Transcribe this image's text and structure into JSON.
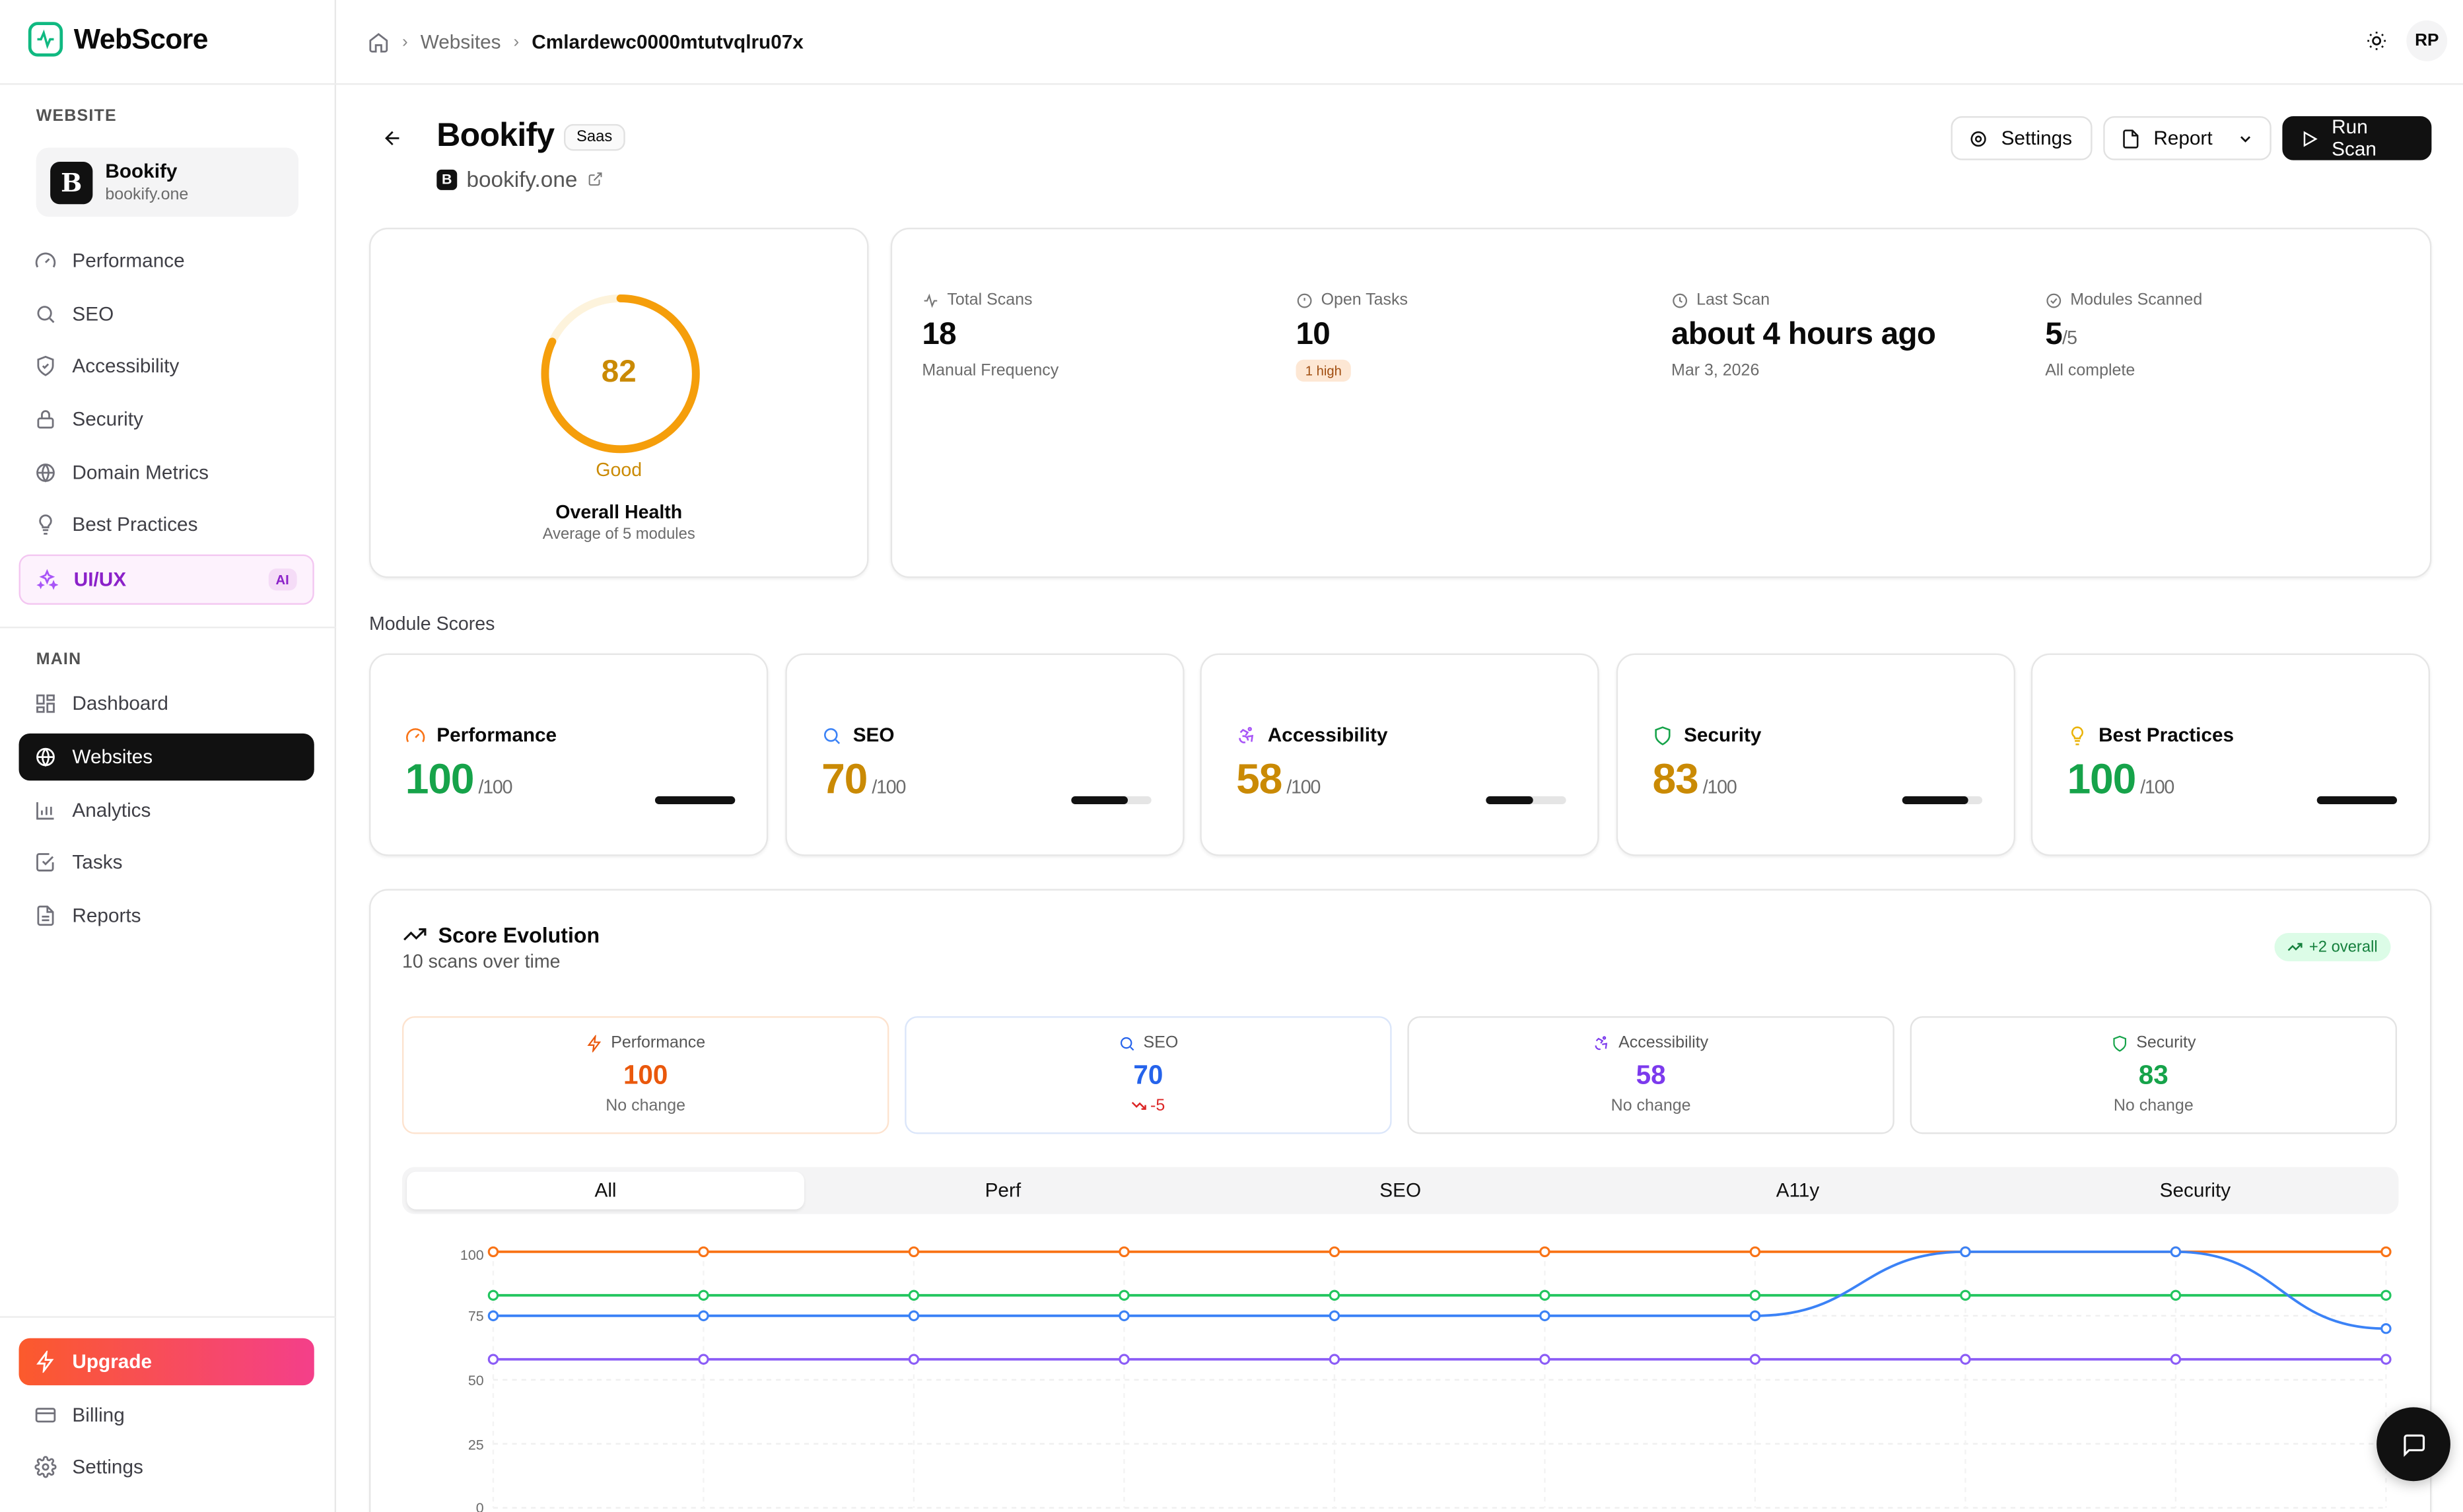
{
  "app": {
    "name": "WebScore"
  },
  "sidebar": {
    "website_label": "WEBSITE",
    "site": {
      "name": "Bookify",
      "url": "bookify.one"
    },
    "website_items": [
      {
        "label": "Performance",
        "icon": "gauge-icon"
      },
      {
        "label": "SEO",
        "icon": "search-icon"
      },
      {
        "label": "Accessibility",
        "icon": "shield-icon"
      },
      {
        "label": "Security",
        "icon": "lock-icon"
      },
      {
        "label": "Domain Metrics",
        "icon": "globe-icon"
      },
      {
        "label": "Best Practices",
        "icon": "lightbulb-icon"
      }
    ],
    "uiux": {
      "label": "UI/UX",
      "badge": "AI",
      "icon": "sparkles-icon"
    },
    "main_label": "MAIN",
    "main_items": [
      {
        "label": "Dashboard",
        "icon": "dashboard-icon"
      },
      {
        "label": "Websites",
        "icon": "globe-icon",
        "active": true
      },
      {
        "label": "Analytics",
        "icon": "bar-chart-icon"
      },
      {
        "label": "Tasks",
        "icon": "checkbox-icon"
      },
      {
        "label": "Reports",
        "icon": "file-icon"
      }
    ],
    "bottom_items": [
      {
        "label": "Upgrade",
        "icon": "bolt-icon"
      },
      {
        "label": "Billing",
        "icon": "card-icon"
      },
      {
        "label": "Settings",
        "icon": "gear-icon"
      }
    ]
  },
  "topbar": {
    "breadcrumb": [
      "Websites",
      "Cmlardewc0000mtutvqlru07x"
    ],
    "avatar": "RP"
  },
  "header": {
    "title": "Bookify",
    "tag": "Saas",
    "domain": "bookify.one",
    "settings_label": "Settings",
    "report_label": "Report",
    "run_label": "Run Scan"
  },
  "health": {
    "score": 82,
    "score_text": "82",
    "rating": "Good",
    "label": "Overall Health",
    "sub": "Average of 5 modules"
  },
  "stats": [
    {
      "label": "Total Scans",
      "value": "18",
      "sub": "Manual Frequency",
      "icon": "activity-icon"
    },
    {
      "label": "Open Tasks",
      "value": "10",
      "badge": "1 high",
      "icon": "alert-circle-icon"
    },
    {
      "label": "Last Scan",
      "value": "about 4 hours ago",
      "sub": "Mar 3, 2026",
      "icon": "clock-icon"
    },
    {
      "label": "Modules Scanned",
      "value": "5",
      "value_suffix": "/5",
      "sub": "All complete",
      "icon": "check-circle-icon"
    }
  ],
  "modules_title": "Module Scores",
  "modules": [
    {
      "name": "Performance",
      "score": "100",
      "max": "/100",
      "fraction": 1.0,
      "color": "#16a34a",
      "icon_color": "#f97316",
      "icon": "gauge-icon"
    },
    {
      "name": "SEO",
      "score": "70",
      "max": "/100",
      "fraction": 0.7,
      "color": "#ca8a04",
      "icon_color": "#3b82f6",
      "icon": "search-icon"
    },
    {
      "name": "Accessibility",
      "score": "58",
      "max": "/100",
      "fraction": 0.58,
      "color": "#ca8a04",
      "icon_color": "#a855f7",
      "icon": "accessibility-icon"
    },
    {
      "name": "Security",
      "score": "83",
      "max": "/100",
      "fraction": 0.83,
      "color": "#ca8a04",
      "icon_color": "#16a34a",
      "icon": "shield-icon"
    },
    {
      "name": "Best Practices",
      "score": "100",
      "max": "/100",
      "fraction": 1.0,
      "color": "#16a34a",
      "icon_color": "#eab308",
      "icon": "lightbulb-icon"
    }
  ],
  "evolution": {
    "title": "Score Evolution",
    "sub": "10 scans over time",
    "badge": "+2 overall",
    "minis": [
      {
        "label": "Performance",
        "value": "100",
        "sub": "No change",
        "color": "#ea580c",
        "icon": "bolt-icon"
      },
      {
        "label": "SEO",
        "value": "70",
        "sub": "-5",
        "color": "#2563eb",
        "sub_color": "#dc2626",
        "icon": "search-icon"
      },
      {
        "label": "Accessibility",
        "value": "58",
        "sub": "No change",
        "color": "#7c3aed",
        "icon": "accessibility-icon"
      },
      {
        "label": "Security",
        "value": "83",
        "sub": "No change",
        "color": "#16a34a",
        "icon": "shield-icon"
      }
    ],
    "tabs": [
      "All",
      "Perf",
      "SEO",
      "A11y",
      "Security"
    ]
  },
  "chart_data": {
    "type": "line",
    "x": [
      1,
      2,
      3,
      4,
      5,
      6,
      7,
      8,
      9,
      10
    ],
    "ylim": [
      0,
      100
    ],
    "yticks": [
      "100",
      "75",
      "50",
      "25",
      "0"
    ],
    "grid": true,
    "series": [
      {
        "values": [
          100,
          100,
          100,
          100,
          100,
          100,
          100,
          100,
          100,
          100
        ],
        "color": "#f97316"
      },
      {
        "values": [
          83,
          83,
          83,
          83,
          83,
          83,
          83,
          83,
          83,
          83
        ],
        "color": "#22c55e"
      },
      {
        "values": [
          75,
          75,
          75,
          75,
          75,
          75,
          75,
          100,
          100,
          70
        ],
        "color": "#3b82f6"
      },
      {
        "values": [
          58,
          58,
          58,
          58,
          58,
          58,
          58,
          58,
          58,
          58
        ],
        "color": "#8b5cf6"
      }
    ]
  }
}
